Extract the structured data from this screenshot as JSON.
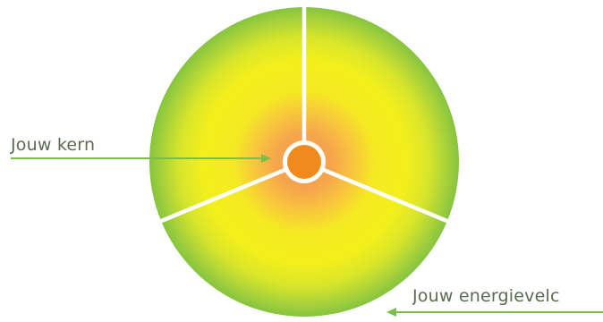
{
  "diagram": {
    "labels": {
      "core": "Jouw kern",
      "energy_field": "Jouw energievelc"
    },
    "colors": {
      "outer_green": "#8cc63f",
      "mid_yellow": "#f5ee1e",
      "inner_orange": "#f7a24b",
      "core_orange": "#f08a1c",
      "divider": "#ffffff",
      "arrow_green": "#7bbf4a",
      "label_text": "#5b6c52"
    },
    "icons": {
      "arrows": "arrow-left-icon"
    }
  }
}
